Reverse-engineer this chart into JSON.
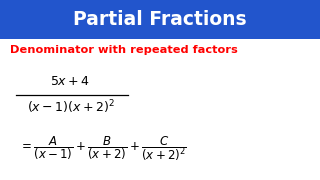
{
  "title": "Partial Fractions",
  "title_bg_color": "#2255CC",
  "title_text_color": "#FFFFFF",
  "subtitle": "Denominator with repeated factors",
  "subtitle_color": "#FF0000",
  "bg_color": "#FFFFFF",
  "math_color": "#000000",
  "title_bar_height": 0.215,
  "title_fontsize": 13.5,
  "subtitle_fontsize": 8.2,
  "math_fontsize": 9.0,
  "decomp_fontsize": 8.5
}
